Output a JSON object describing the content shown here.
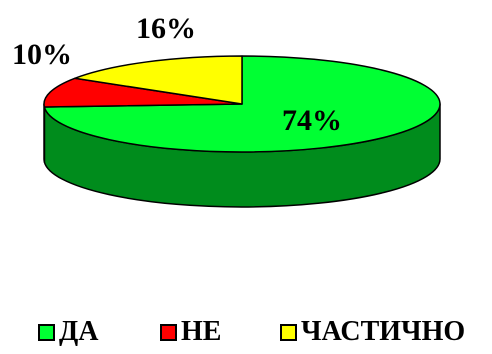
{
  "chart_data": {
    "type": "pie",
    "style": "3d",
    "categories": [
      "ДА",
      "НЕ",
      "ЧАСТИЧНО"
    ],
    "values": [
      74,
      10,
      16
    ],
    "data_labels": [
      "74%",
      "10%",
      "16%"
    ],
    "colors": [
      "#00ff33",
      "#ff0000",
      "#ffff00"
    ],
    "legend": "bottom"
  }
}
